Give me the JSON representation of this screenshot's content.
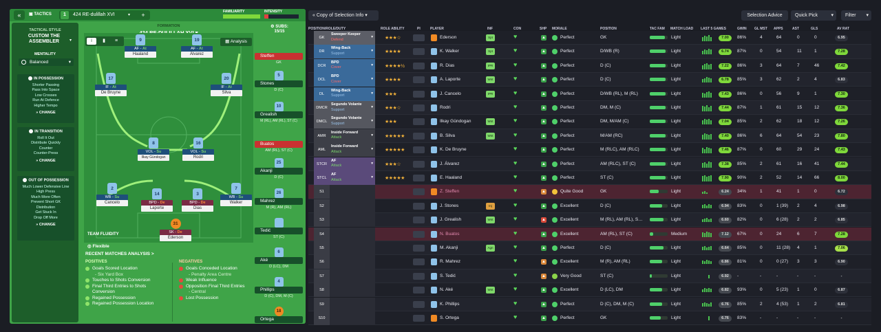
{
  "left": {
    "tactics_label": "TACTICS",
    "slot": "1",
    "tactic_name": "424 RE-dulillah XVI",
    "add": "+",
    "familiarity_label": "FAMILIARITY",
    "intensity_label": "INTENSITY",
    "tactical_style_label": "TACTICAL STYLE",
    "tactical_style": "CUSTOM THE ASSEMBLER",
    "mentality_label": "MENTALITY",
    "mentality": "Balanced",
    "formation_label": "FORMATION",
    "formation_name": "424 RE-DULILLAH XVI",
    "subs_label": "SUBS:",
    "subs_count": "15/15",
    "analysis_btn": "Analysis",
    "in_possession": {
      "title": "IN POSSESSION",
      "items": [
        "Shorter Passing",
        "Pass Into Space",
        "Low Crosses",
        "Run At Defence",
        "Higher Tempo"
      ],
      "change": "CHANGE"
    },
    "in_transition": {
      "title": "IN TRANSITION",
      "items": [
        "Roll It Out",
        "Distribute Quickly",
        "Counter",
        "Counter-Press"
      ],
      "change": "CHANGE"
    },
    "out_possession": {
      "title": "OUT OF POSSESSION",
      "items": [
        "Much Lower Defensive Line",
        "High Press",
        "Much More Often",
        "Prevent Short GK",
        "Distribution",
        "Get Stuck In",
        "Drop Off More"
      ],
      "change": "CHANGE"
    },
    "team_fluidity_label": "TEAM FLUIDITY",
    "team_fluidity": "Flexible",
    "pitch": [
      {
        "num": "9",
        "role": "AF",
        "duty": "At",
        "name": "Haaland"
      },
      {
        "num": "19",
        "role": "AF",
        "duty": "At",
        "name": "Álvarez"
      },
      {
        "num": "17",
        "role": "IF",
        "duty": "At",
        "name": "De Bruyne"
      },
      {
        "num": "20",
        "role": "IF",
        "duty": "At",
        "name": "Silva"
      },
      {
        "num": "8",
        "role": "VOL",
        "duty": "Su",
        "name": "Ilkay Gündogan"
      },
      {
        "num": "16",
        "role": "VOL",
        "duty": "Su",
        "name": "Rodri"
      },
      {
        "num": "2",
        "role": "WB",
        "duty": "Su",
        "name": "Cancelo"
      },
      {
        "num": "14",
        "role": "BPD",
        "duty": "De",
        "name": "Laporte"
      },
      {
        "num": "3",
        "role": "BPD",
        "duty": "De",
        "name": "Dias"
      },
      {
        "num": "7",
        "role": "WB",
        "duty": "Su",
        "name": "Walker"
      },
      {
        "num": "31",
        "role": "SK",
        "duty": "De",
        "name": "Ederson"
      }
    ],
    "subs": [
      {
        "name": "Steffen",
        "pos": "GK",
        "num": ""
      },
      {
        "name": "Stones",
        "pos": "D (C)",
        "num": "5"
      },
      {
        "name": "Grealish",
        "pos": "M (RL), AM (RL), ST (C)",
        "num": "10"
      },
      {
        "name": "Buatos",
        "pos": "AM (RL), ST (C)",
        "num": ""
      },
      {
        "name": "Akanji",
        "pos": "D (C)",
        "num": "25"
      },
      {
        "name": "Mahrez",
        "pos": "M (R), AM (RL)",
        "num": "26"
      },
      {
        "name": "Tedić",
        "pos": "ST (C)",
        "num": ""
      },
      {
        "name": "Aké",
        "pos": "D (LC), DM",
        "num": "6"
      },
      {
        "name": "Phillips",
        "pos": "D (C), DM, M (C)",
        "num": "4"
      },
      {
        "name": "Ortega",
        "pos": "",
        "num": "18"
      }
    ],
    "recent_title": "RECENT MATCHES ANALYSIS >",
    "positives_label": "POSITIVES",
    "positives": [
      [
        "Goals Scored Location",
        "- Six Yard Box"
      ],
      [
        "Touches to Shots Conversion",
        ""
      ],
      [
        "Final Third Entries to Shots",
        "Conversion"
      ],
      [
        "Regained Possession",
        ""
      ],
      [
        "Regained Possession Location",
        ""
      ]
    ],
    "negatives_label": "NEGATIVES",
    "negatives": [
      [
        "Goals Conceded Location",
        "- Penalty Area Centre"
      ],
      [
        "Weak Influence",
        ""
      ],
      [
        "Opposition Final Third Entries",
        "- Central"
      ],
      [
        "Lost Possession",
        ""
      ]
    ]
  },
  "right": {
    "view_selector": "Copy of Selection Info",
    "selection_advice": "Selection Advice",
    "quick_pick": "Quick Pick",
    "filter": "Filter",
    "columns": [
      "POSITION/ROLE/DUTY",
      "ROLE ABILITY",
      "PI",
      "PLAYER",
      "INF",
      "CON",
      "SHP",
      "MORALE",
      "POSITION",
      "TAC FAM",
      "MATCH LOAD",
      "LAST 5 GAMES",
      "GWIN",
      "GL MST",
      "APPS",
      "AST",
      "GLS",
      "AV RAT"
    ],
    "rows": [
      {
        "pos": "GK",
        "role": "Sweeper Keeper",
        "duty": "Defend",
        "stars": "★★★☆",
        "name": "Ederson",
        "inf": "Spt",
        "morale": "Perfect",
        "position": "GK",
        "load": "Light",
        "last5": "7.00",
        "gwin": "86%",
        "glmst": "4",
        "apps": "64",
        "ast": "0",
        "gls": "0",
        "avrat": "6.95"
      },
      {
        "pos": "DR",
        "role": "Wing-Back",
        "duty": "Support",
        "stars": "★★★★",
        "name": "K. Walker",
        "inf": "Spt",
        "morale": "Perfect",
        "position": "D/WB (R)",
        "load": "Light",
        "last5": "6.74",
        "gwin": "87%",
        "glmst": "0",
        "apps": "54",
        "ast": "11",
        "gls": "1",
        "avrat": "7.28"
      },
      {
        "pos": "DCR",
        "role": "BPD",
        "duty": "Cover",
        "stars": "★★★★½",
        "name": "R. Dias",
        "inf": "IPR",
        "morale": "Perfect",
        "position": "D (C)",
        "load": "Light",
        "last5": "7.22",
        "gwin": "86%",
        "glmst": "3",
        "apps": "64",
        "ast": "7",
        "gls": "46",
        "avrat": "7.42"
      },
      {
        "pos": "DCL",
        "role": "BPD",
        "duty": "Cover",
        "stars": "★★★★",
        "name": "A. Laporte",
        "inf": "Wnt",
        "morale": "Perfect",
        "position": "D (C)",
        "load": "Light",
        "last5": "6.78",
        "gwin": "85%",
        "glmst": "3",
        "apps": "62",
        "ast": "2",
        "gls": "4",
        "avrat": "6.83"
      },
      {
        "pos": "DL",
        "role": "Wing-Back",
        "duty": "Support",
        "stars": "★★★",
        "name": "J. Cancelo",
        "inf": "IPR",
        "morale": "Perfect",
        "position": "D/WB (RL), M (RL)",
        "load": "Light",
        "last5": "7.43",
        "gwin": "86%",
        "glmst": "0",
        "apps": "56",
        "ast": "9",
        "gls": "1",
        "avrat": "7.30"
      },
      {
        "pos": "DMCR",
        "role": "Segundo Volante",
        "duty": "Support",
        "stars": "★★★☆",
        "name": "Rodri",
        "inf": "",
        "morale": "Perfect",
        "position": "DM, M (C)",
        "load": "Light",
        "last5": "7.44",
        "gwin": "87%",
        "glmst": "1",
        "apps": "61",
        "ast": "15",
        "gls": "12",
        "avrat": "7.36"
      },
      {
        "pos": "DMCL",
        "role": "Segundo Volante",
        "duty": "Support",
        "stars": "★★★",
        "name": "Ilkay Gündogan",
        "inf": "Wnt",
        "morale": "Perfect",
        "position": "DM, M/AM (C)",
        "load": "Light",
        "last5": "7.04",
        "gwin": "85%",
        "glmst": "2",
        "apps": "62",
        "ast": "18",
        "gls": "12",
        "avrat": "7.26"
      },
      {
        "pos": "AMR",
        "role": "Inside Forward",
        "duty": "Attack",
        "stars": "★★★★★",
        "name": "B. Silva",
        "inf": "Wnt",
        "morale": "Perfect",
        "position": "M/AM (RC)",
        "load": "Light",
        "last5": "7.40",
        "gwin": "86%",
        "glmst": "6",
        "apps": "64",
        "ast": "54",
        "gls": "23",
        "avrat": "7.80"
      },
      {
        "pos": "AML",
        "role": "Inside Forward",
        "duty": "Attack",
        "stars": "★★★★★",
        "name": "K. De Bruyne",
        "inf": "",
        "morale": "Perfect",
        "position": "M (RLC), AM (RLC)",
        "load": "Light",
        "last5": "7.46",
        "gwin": "87%",
        "glmst": "0",
        "apps": "60",
        "ast": "29",
        "gls": "24",
        "avrat": "7.43"
      },
      {
        "pos": "STCR",
        "role": "AF",
        "duty": "Attack",
        "stars": "★★★☆",
        "name": "J. Álvarez",
        "inf": "",
        "morale": "Perfect",
        "position": "AM (RLC), ST (C)",
        "load": "Light",
        "last5": "7.38",
        "gwin": "85%",
        "glmst": "2",
        "apps": "61",
        "ast": "16",
        "gls": "41",
        "avrat": "7.44"
      },
      {
        "pos": "STCL",
        "role": "AF",
        "duty": "Attack",
        "stars": "★★★★★",
        "name": "E. Haaland",
        "inf": "",
        "morale": "Perfect",
        "position": "ST (C)",
        "load": "Light",
        "last5": "7.90",
        "gwin": "90%",
        "glmst": "2",
        "apps": "52",
        "ast": "14",
        "gls": "66",
        "avrat": "8.00"
      },
      {
        "pos": "S1",
        "role": "",
        "duty": "",
        "stars": "",
        "name": "Z. Steffen",
        "inf": "",
        "morale": "Quite Good",
        "position": "GK",
        "load": "Light",
        "last5": "6.24",
        "gwin": "34%",
        "glmst": "1",
        "apps": "41",
        "ast": "1",
        "gls": "0",
        "avrat": "6.72"
      },
      {
        "pos": "S2",
        "role": "",
        "duty": "",
        "stars": "",
        "name": "J. Stones",
        "inf": "Inj",
        "morale": "Excellent",
        "position": "D (C)",
        "load": "Light",
        "last5": "6.94",
        "gwin": "83%",
        "glmst": "0",
        "apps": "1 (39)",
        "ast": "2",
        "gls": "4",
        "avrat": "6.98"
      },
      {
        "pos": "S3",
        "role": "",
        "duty": "",
        "stars": "",
        "name": "J. Grealish",
        "inf": "Wnt",
        "morale": "Excellent",
        "position": "M (RL), AM (RL), S…",
        "load": "Light",
        "last5": "6.60",
        "gwin": "82%",
        "glmst": "0",
        "apps": "6 (28)",
        "ast": "2",
        "gls": "2",
        "avrat": "6.85"
      },
      {
        "pos": "S4",
        "role": "",
        "duty": "",
        "stars": "",
        "name": "N. Buatos",
        "inf": "",
        "morale": "Excellent",
        "position": "AM (RL), ST (C)",
        "load": "Medium",
        "last5": "7.12",
        "gwin": "67%",
        "glmst": "0",
        "apps": "24",
        "ast": "6",
        "gls": "7",
        "avrat": "7.28"
      },
      {
        "pos": "S5",
        "role": "",
        "duty": "",
        "stars": "",
        "name": "M. Akanji",
        "inf": "Agn",
        "morale": "Perfect",
        "position": "D (C)",
        "load": "Light",
        "last5": "6.64",
        "gwin": "85%",
        "glmst": "0",
        "apps": "11 (28)",
        "ast": "4",
        "gls": "1",
        "avrat": "7.06"
      },
      {
        "pos": "S6",
        "role": "",
        "duty": "",
        "stars": "",
        "name": "R. Mahrez",
        "inf": "",
        "morale": "Excellent",
        "position": "M (R), AM (RL)",
        "load": "Light",
        "last5": "6.86",
        "gwin": "81%",
        "glmst": "0",
        "apps": "0 (27)",
        "ast": "3",
        "gls": "3",
        "avrat": "6.90"
      },
      {
        "pos": "S7",
        "role": "",
        "duty": "",
        "stars": "",
        "name": "S. Tedić",
        "inf": "",
        "morale": "Very Good",
        "position": "ST (C)",
        "load": "Light",
        "last5": "6.92",
        "gwin": "-",
        "glmst": "-",
        "apps": "-",
        "ast": "-",
        "gls": "-",
        "avrat": "-"
      },
      {
        "pos": "S8",
        "role": "",
        "duty": "",
        "stars": "",
        "name": "N. Aké",
        "inf": "Wnt",
        "morale": "Excellent",
        "position": "D (LC), DM",
        "load": "Light",
        "last5": "6.82",
        "gwin": "93%",
        "glmst": "0",
        "apps": "5 (23)",
        "ast": "1",
        "gls": "0",
        "avrat": "6.87"
      },
      {
        "pos": "S9",
        "role": "",
        "duty": "",
        "stars": "",
        "name": "K. Phillips",
        "inf": "",
        "morale": "Perfect",
        "position": "D (C), DM, M (C)",
        "load": "Light",
        "last5": "6.76",
        "gwin": "85%",
        "glmst": "2",
        "apps": "4 (53)",
        "ast": "1",
        "gls": "2",
        "avrat": "6.81"
      },
      {
        "pos": "S10",
        "role": "",
        "duty": "",
        "stars": "",
        "name": "S. Ortega",
        "inf": "",
        "morale": "Perfect",
        "position": "GK",
        "load": "Light",
        "last5": "6.76",
        "gwin": "83%",
        "glmst": "-",
        "apps": "-",
        "ast": "-",
        "gls": "-",
        "avrat": "-"
      }
    ]
  },
  "colors": {
    "accent": "#3fa448",
    "sub_red": "#c93131",
    "gold": "#f3b23a",
    "good": "#7fd83b"
  }
}
